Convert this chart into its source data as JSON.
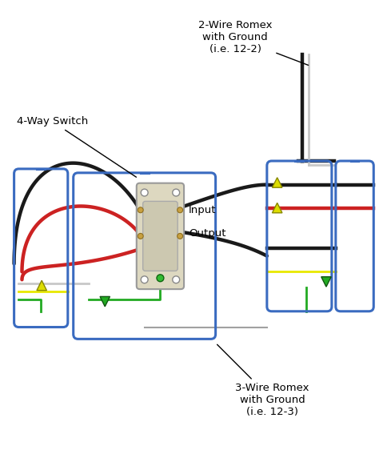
{
  "bg_color": "#ffffff",
  "label_4way": "4-Way Switch",
  "label_2wire": "2-Wire Romex\nwith Ground\n(i.e. 12-2)",
  "label_3wire": "3-Wire Romex\nwith Ground\n(i.e. 12-3)",
  "label_input": "Input",
  "label_output": "Output",
  "box_color": "#3a6bc0",
  "wire_black": "#1a1a1a",
  "wire_red": "#cc2222",
  "wire_white": "#c8c8c8",
  "wire_yellow": "#e8e800",
  "wire_green": "#22aa22",
  "switch_face": "#ddd8c0",
  "switch_edge": "#999999"
}
